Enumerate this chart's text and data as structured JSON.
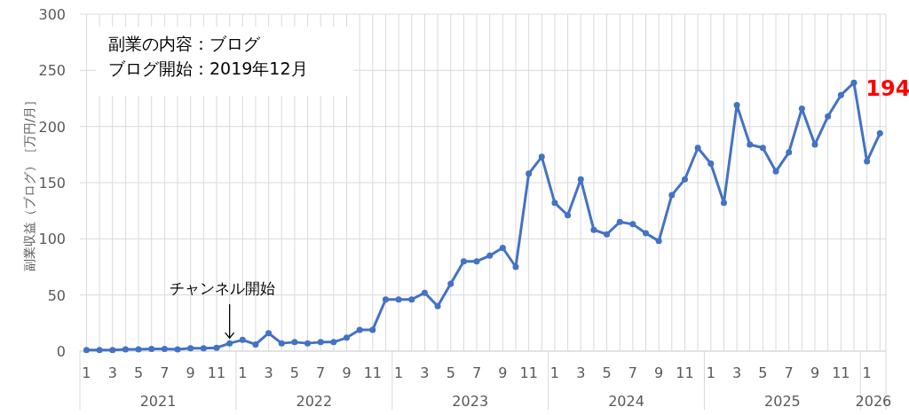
{
  "chart_data": {
    "type": "line",
    "ylabel": "副業収益（ブログ）［万円/月］",
    "x": [
      "2021-01",
      "2021-02",
      "2021-03",
      "2021-04",
      "2021-05",
      "2021-06",
      "2021-07",
      "2021-08",
      "2021-09",
      "2021-10",
      "2021-11",
      "2021-12",
      "2022-01",
      "2022-02",
      "2022-03",
      "2022-04",
      "2022-05",
      "2022-06",
      "2022-07",
      "2022-08",
      "2022-09",
      "2022-10",
      "2022-11",
      "2022-12",
      "2023-01",
      "2023-02",
      "2023-03",
      "2023-04",
      "2023-05",
      "2023-06",
      "2023-07",
      "2023-08",
      "2023-09",
      "2023-10",
      "2023-11",
      "2023-12",
      "2024-01",
      "2024-02",
      "2024-03",
      "2024-04",
      "2024-05",
      "2024-06",
      "2024-07",
      "2024-08",
      "2024-09",
      "2024-10",
      "2024-11",
      "2024-12",
      "2025-01",
      "2025-02",
      "2025-03",
      "2025-04",
      "2025-05",
      "2025-06",
      "2025-07",
      "2025-08",
      "2025-09",
      "2025-10",
      "2025-11",
      "2025-12",
      "2026-01",
      "2026-02"
    ],
    "series": [
      {
        "color": "#4472c4",
        "values": [
          1,
          1,
          1,
          1.5,
          1.5,
          2,
          2,
          1.5,
          2.5,
          2.5,
          3,
          7,
          10,
          6,
          16,
          7,
          8,
          7,
          8,
          8,
          12,
          19,
          19,
          46,
          46,
          46,
          52,
          40,
          60,
          80,
          80,
          85,
          92,
          75,
          158,
          173,
          132,
          121,
          153,
          108,
          104,
          115,
          113,
          105,
          98,
          139,
          153,
          181,
          167,
          132,
          219,
          184,
          181,
          160,
          177,
          216,
          184,
          209,
          228,
          239,
          169,
          194
        ],
        "value_labels": [
          null,
          null,
          null,
          null,
          null,
          null,
          null,
          null,
          null,
          null,
          null,
          null,
          null,
          null,
          null,
          null,
          null,
          null,
          null,
          null,
          null,
          null,
          null,
          null,
          null,
          null,
          null,
          null,
          null,
          null,
          null,
          null,
          null,
          null,
          null,
          null,
          null,
          null,
          null,
          null,
          null,
          null,
          null,
          null,
          null,
          null,
          null,
          null,
          null,
          null,
          null,
          null,
          null,
          null,
          null,
          null,
          null,
          null,
          null,
          null,
          null,
          "194"
        ]
      }
    ],
    "xlim": [
      "2020-12-16",
      "2026-02-15"
    ],
    "xticks": [
      {
        "value": "2021-01",
        "label": "1"
      },
      {
        "value": "2021-02",
        "label": null
      },
      {
        "value": "2021-03",
        "label": "3"
      },
      {
        "value": "2021-04",
        "label": null
      },
      {
        "value": "2021-05",
        "label": "5"
      },
      {
        "value": "2021-06",
        "label": null
      },
      {
        "value": "2021-07",
        "label": "7"
      },
      {
        "value": "2021-08",
        "label": null
      },
      {
        "value": "2021-09",
        "label": "9"
      },
      {
        "value": "2021-10",
        "label": null
      },
      {
        "value": "2021-11",
        "label": "11"
      },
      {
        "value": "2021-12",
        "label": null
      },
      {
        "value": "2022-01",
        "label": "1"
      },
      {
        "value": "2022-02",
        "label": null
      },
      {
        "value": "2022-03",
        "label": "3"
      },
      {
        "value": "2022-04",
        "label": null
      },
      {
        "value": "2022-05",
        "label": "5"
      },
      {
        "value": "2022-06",
        "label": null
      },
      {
        "value": "2022-07",
        "label": "7"
      },
      {
        "value": "2022-08",
        "label": null
      },
      {
        "value": "2022-09",
        "label": "9"
      },
      {
        "value": "2022-10",
        "label": null
      },
      {
        "value": "2022-11",
        "label": "11"
      },
      {
        "value": "2022-12",
        "label": null
      },
      {
        "value": "2023-01",
        "label": "1"
      },
      {
        "value": "2023-02",
        "label": null
      },
      {
        "value": "2023-03",
        "label": "3"
      },
      {
        "value": "2023-04",
        "label": null
      },
      {
        "value": "2023-05",
        "label": "5"
      },
      {
        "value": "2023-06",
        "label": null
      },
      {
        "value": "2023-07",
        "label": "7"
      },
      {
        "value": "2023-08",
        "label": null
      },
      {
        "value": "2023-09",
        "label": "9"
      },
      {
        "value": "2023-10",
        "label": null
      },
      {
        "value": "2023-11",
        "label": "11"
      },
      {
        "value": "2023-12",
        "label": null
      },
      {
        "value": "2024-01",
        "label": "1"
      },
      {
        "value": "2024-02",
        "label": null
      },
      {
        "value": "2024-03",
        "label": "3"
      },
      {
        "value": "2024-04",
        "label": null
      },
      {
        "value": "2024-05",
        "label": "5"
      },
      {
        "value": "2024-06",
        "label": null
      },
      {
        "value": "2024-07",
        "label": "7"
      },
      {
        "value": "2024-08",
        "label": null
      },
      {
        "value": "2024-09",
        "label": "9"
      },
      {
        "value": "2024-10",
        "label": null
      },
      {
        "value": "2024-11",
        "label": "11"
      },
      {
        "value": "2024-12",
        "label": null
      },
      {
        "value": "2025-01",
        "label": "1"
      },
      {
        "value": "2025-02",
        "label": null
      },
      {
        "value": "2025-03",
        "label": "3"
      },
      {
        "value": "2025-04",
        "label": null
      },
      {
        "value": "2025-05",
        "label": "5"
      },
      {
        "value": "2025-06",
        "label": null
      },
      {
        "value": "2025-07",
        "label": "7"
      },
      {
        "value": "2025-08",
        "label": null
      },
      {
        "value": "2025-09",
        "label": "9"
      },
      {
        "value": "2025-10",
        "label": null
      },
      {
        "value": "2025-11",
        "label": "11"
      },
      {
        "value": "2025-12",
        "label": null
      },
      {
        "value": "2026-01",
        "label": "1"
      },
      {
        "value": "2026-02",
        "label": null
      }
    ],
    "ylim": [
      0,
      300
    ],
    "yticks": [
      0,
      50,
      100,
      150,
      200,
      250,
      300
    ],
    "grid": true,
    "marker": "circle",
    "line_style": "solid",
    "annotations": [
      "副業の内容：ブログ",
      "ブログ開始：2019年12月",
      {
        "text": "チャンネル開始",
        "x": "2021-12",
        "y": 7
      },
      "2021",
      "2022",
      "2023",
      "2024",
      "2025",
      "2026"
    ]
  }
}
